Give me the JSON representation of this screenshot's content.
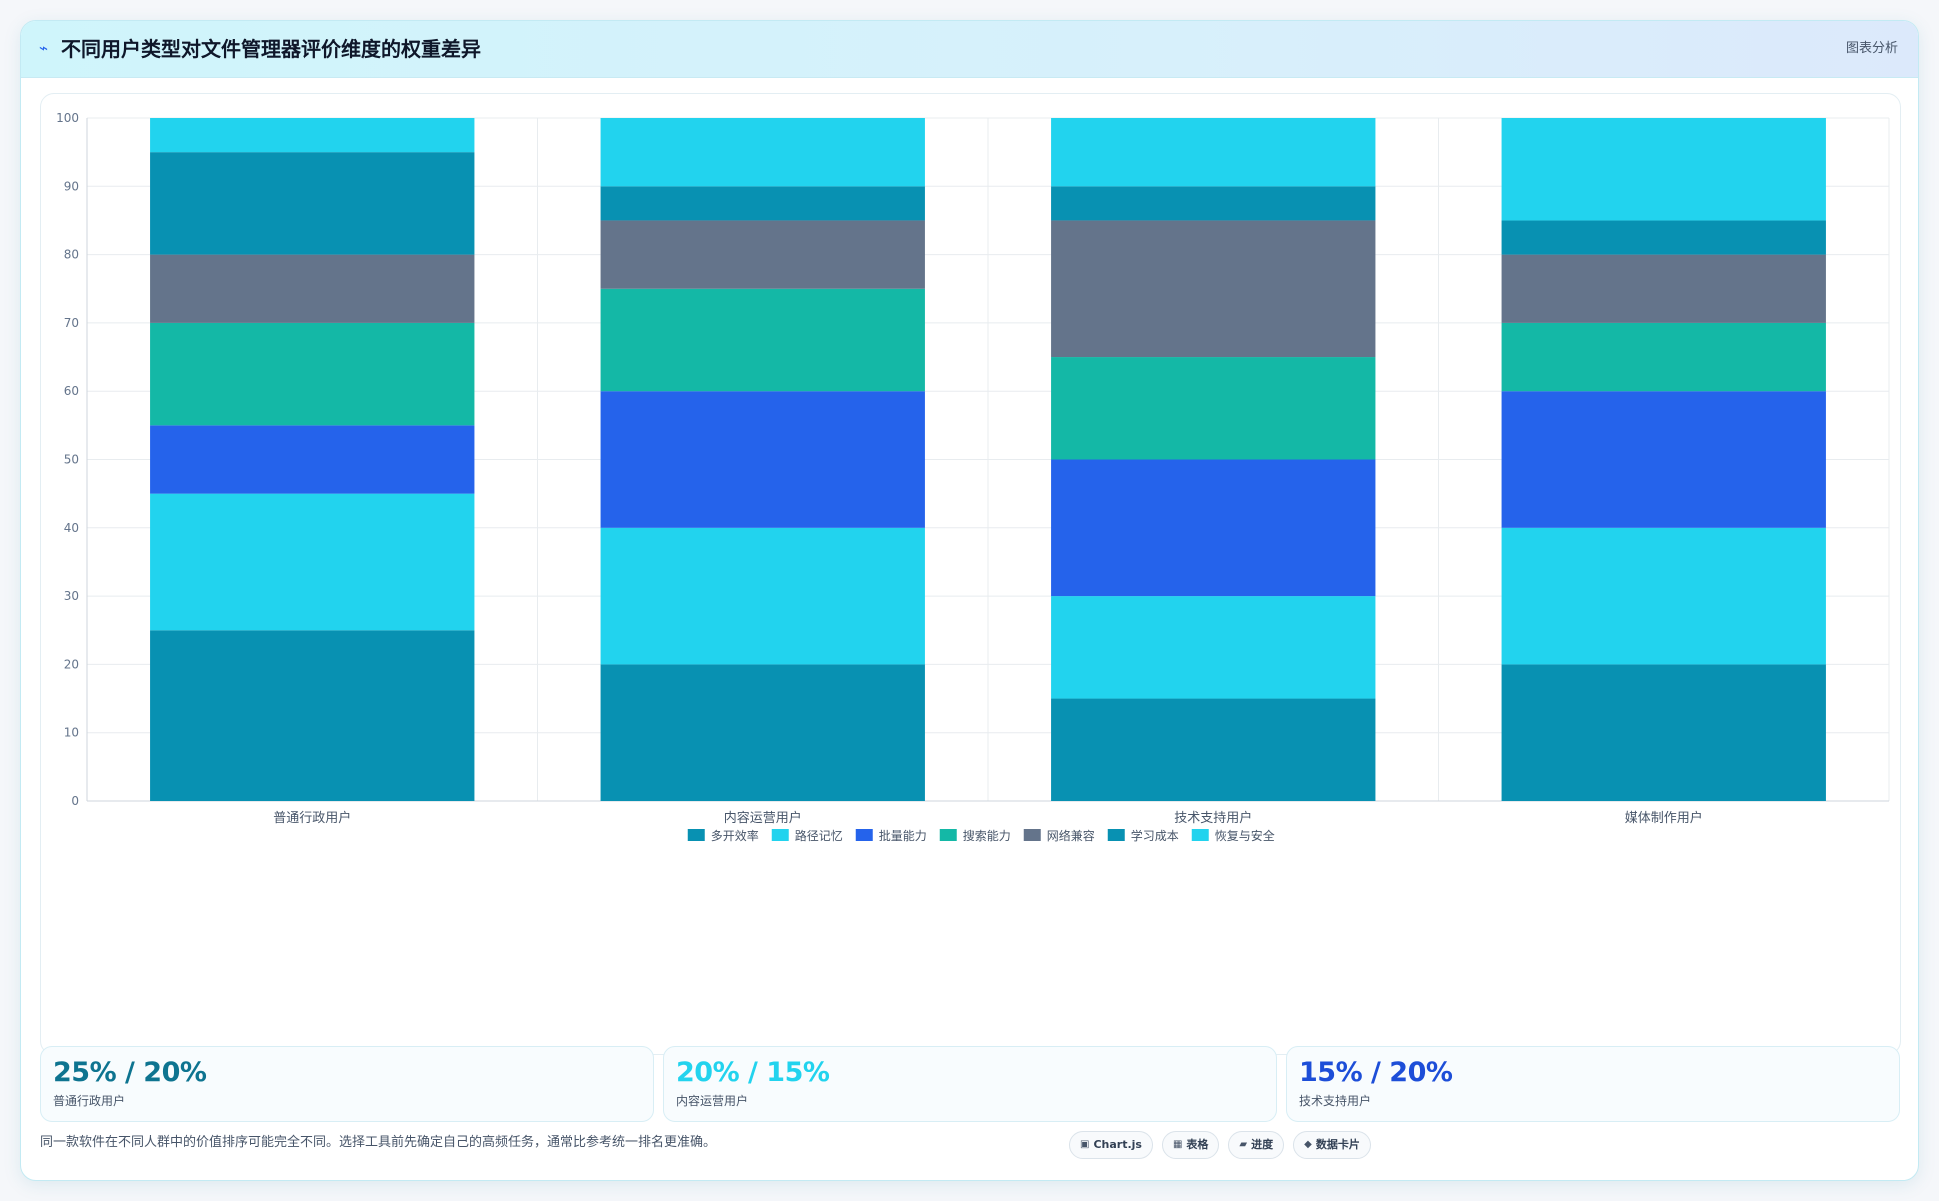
{
  "header": {
    "title": "不同用户类型对文件管理器评价维度的权重差异",
    "icon": "chart-line-icon",
    "right_label": "图表分析"
  },
  "chart_data": {
    "type": "bar",
    "stacked": true,
    "categories": [
      "普通行政用户",
      "内容运营用户",
      "技术支持用户",
      "媒体制作用户"
    ],
    "series": [
      {
        "name": "多开效率",
        "color": "#0891b2",
        "values": [
          25,
          20,
          15,
          20
        ]
      },
      {
        "name": "路径记忆",
        "color": "#22d3ee",
        "values": [
          20,
          20,
          15,
          20
        ]
      },
      {
        "name": "批量能力",
        "color": "#2563eb",
        "values": [
          10,
          20,
          20,
          20
        ]
      },
      {
        "name": "搜索能力",
        "color": "#14b8a6",
        "values": [
          15,
          15,
          15,
          10
        ]
      },
      {
        "name": "网络兼容",
        "color": "#64748b",
        "values": [
          10,
          10,
          20,
          10
        ]
      },
      {
        "name": "学习成本",
        "color": "#0891b2",
        "values": [
          15,
          5,
          5,
          5
        ]
      },
      {
        "name": "恢复与安全",
        "color": "#22d3ee",
        "values": [
          5,
          10,
          10,
          15
        ]
      }
    ],
    "ylim": [
      0,
      100
    ],
    "yticks": [
      0,
      10,
      20,
      30,
      40,
      50,
      60,
      70,
      80,
      90,
      100
    ],
    "legend_position": "bottom",
    "grid": true
  },
  "stats": [
    {
      "value": "25% / 20%",
      "label": "普通行政用户",
      "color": "#0e7490"
    },
    {
      "value": "20% / 15%",
      "label": "内容运营用户",
      "color": "#22d3ee"
    },
    {
      "value": "15% / 20%",
      "label": "技术支持用户",
      "color": "#1d4ed8"
    }
  ],
  "footer": {
    "note": "同一款软件在不同人群中的价值排序可能完全不同。选择工具前先确定自己的高频任务，通常比参考统一排名更准确。",
    "chips": [
      {
        "icon": "▣",
        "label": "Chart.js"
      },
      {
        "icon": "▦",
        "label": "表格"
      },
      {
        "icon": "▰",
        "label": "进度"
      },
      {
        "icon": "◆",
        "label": "数据卡片"
      }
    ]
  }
}
